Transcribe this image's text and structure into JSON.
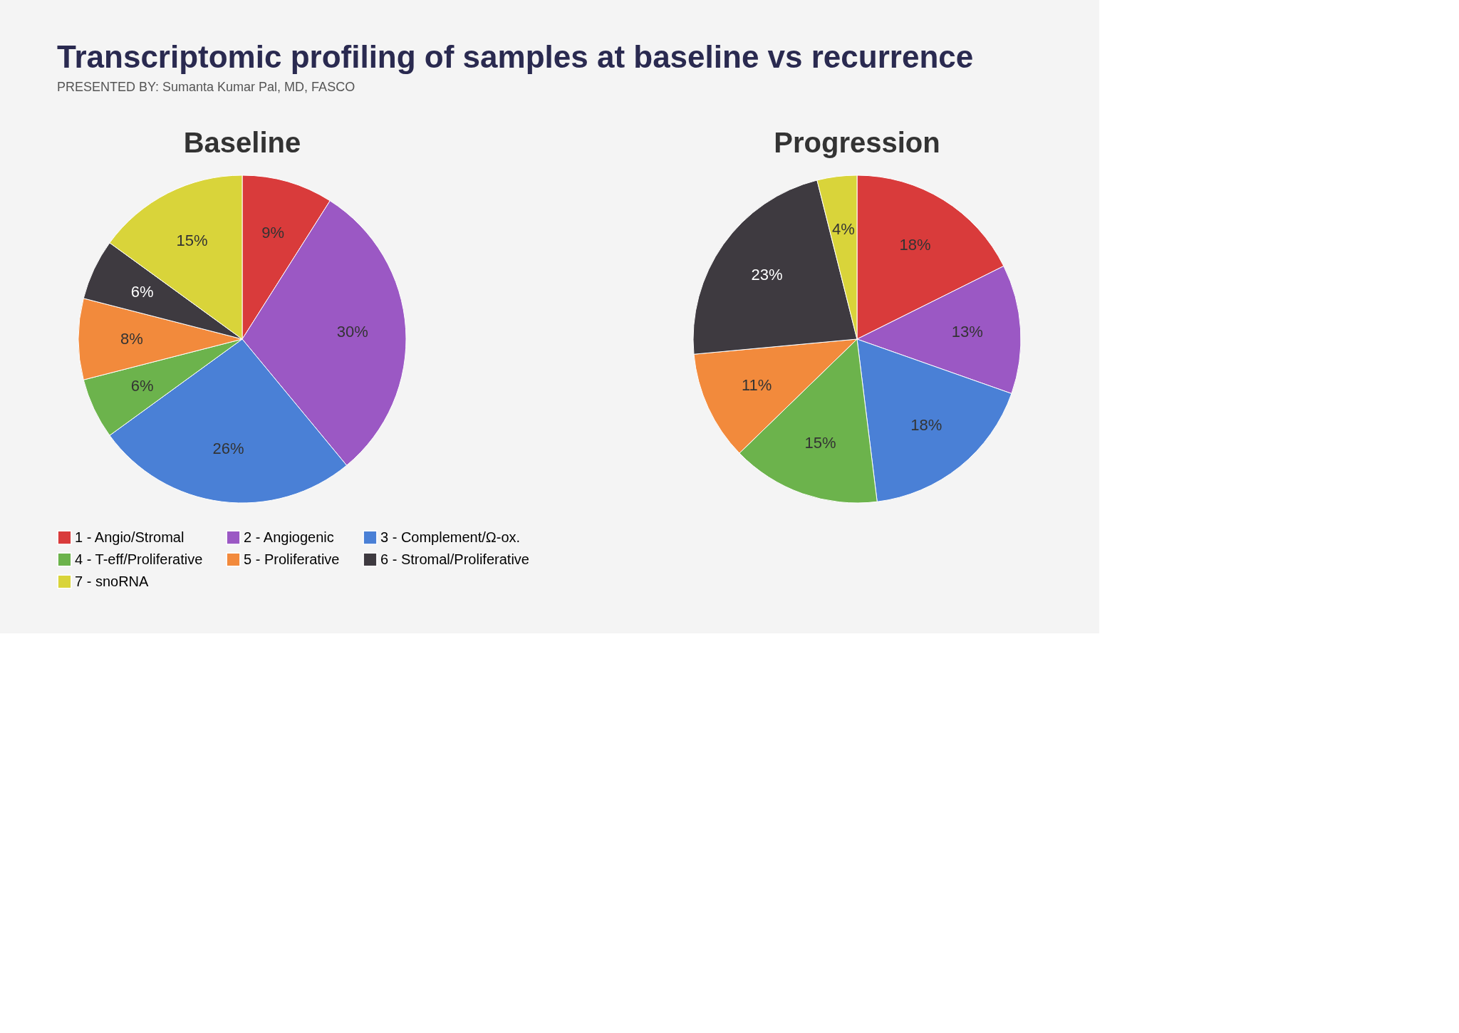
{
  "chart_data": [
    {
      "type": "pie",
      "title": "Baseline",
      "annotations": [
        "Transcriptomic profiling of samples at baseline vs recurrence"
      ],
      "categories": [
        "1 - Angio/Stromal",
        "2 - Angiogenic",
        "3 - Complement/Ω-ox.",
        "4 - T-eff/Proliferative",
        "5 - Proliferative",
        "6 - Stromal/Proliferative",
        "7 - snoRNA"
      ],
      "values": [
        9,
        30,
        26,
        6,
        8,
        6,
        15
      ],
      "colors": [
        "#d93b3b",
        "#9b58c4",
        "#4a80d6",
        "#6cb34c",
        "#f28a3c",
        "#3e3a40",
        "#d9d43a"
      ],
      "value_labels": [
        "9%",
        "30%",
        "26%",
        "6%",
        "8%",
        "6%",
        "15%"
      ],
      "legend": "bottom"
    },
    {
      "type": "pie",
      "title": "Progression",
      "annotations": [
        "PRESENTED BY: Sumanta Kumar Pal, MD, FASCO"
      ],
      "categories": [
        null,
        null,
        null,
        null,
        null,
        null,
        null
      ],
      "values": [
        18,
        13,
        18,
        15,
        11,
        23,
        4
      ],
      "colors": [
        "#d93b3b",
        "#9b58c4",
        "#4a80d6",
        "#6cb34c",
        "#f28a3c",
        "#3e3a40",
        "#d9d43a"
      ],
      "value_labels": [
        "18%",
        "13%",
        "18%",
        "15%",
        "11%",
        "23%",
        "4%"
      ]
    }
  ]
}
